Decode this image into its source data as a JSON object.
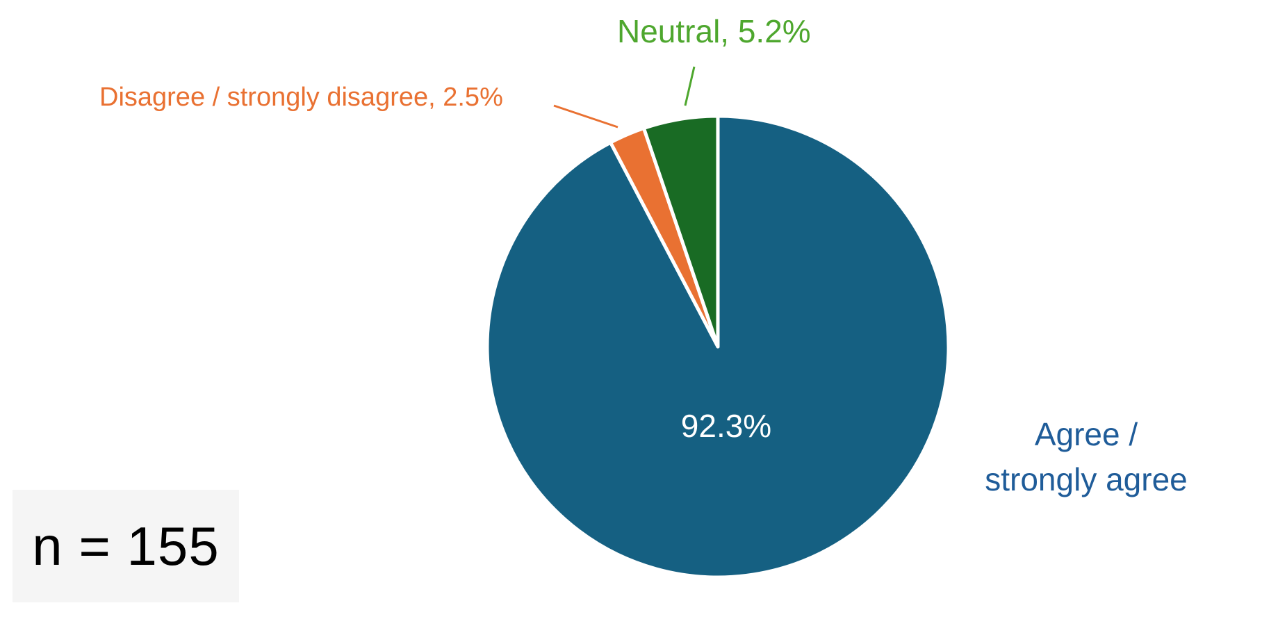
{
  "chart_data": {
    "type": "pie",
    "title": "",
    "start_angle_deg": 0,
    "direction": "counterclockwise-from-top for small slices",
    "categories": [
      "Agree / strongly agree",
      "Neutral",
      "Disagree / strongly disagree"
    ],
    "values": [
      92.3,
      5.2,
      2.5
    ],
    "unit": "%",
    "colors": [
      "#156082",
      "#196B24",
      "#E97132"
    ],
    "label_colors": [
      "#1F5C99",
      "#4EA72E",
      "#E97132"
    ],
    "annotations": {
      "sample_size": "n = 155"
    }
  },
  "labels": {
    "neutral": "Neutral, 5.2%",
    "disagree": "Disagree / strongly disagree, 2.5%",
    "agree_line1": "Agree /",
    "agree_line2": "strongly agree",
    "agree_value": "92.3%"
  },
  "sample_size": {
    "text": "n = 155"
  },
  "colors": {
    "agree_slice": "#156082",
    "neutral_slice": "#196B24",
    "disagree_slice": "#E97132",
    "agree_label": "#1F5C99",
    "neutral_label": "#4EA72E",
    "disagree_label": "#E97132",
    "inner_value": "#FFFFFF",
    "n_box_bg": "#F5F5F5"
  }
}
